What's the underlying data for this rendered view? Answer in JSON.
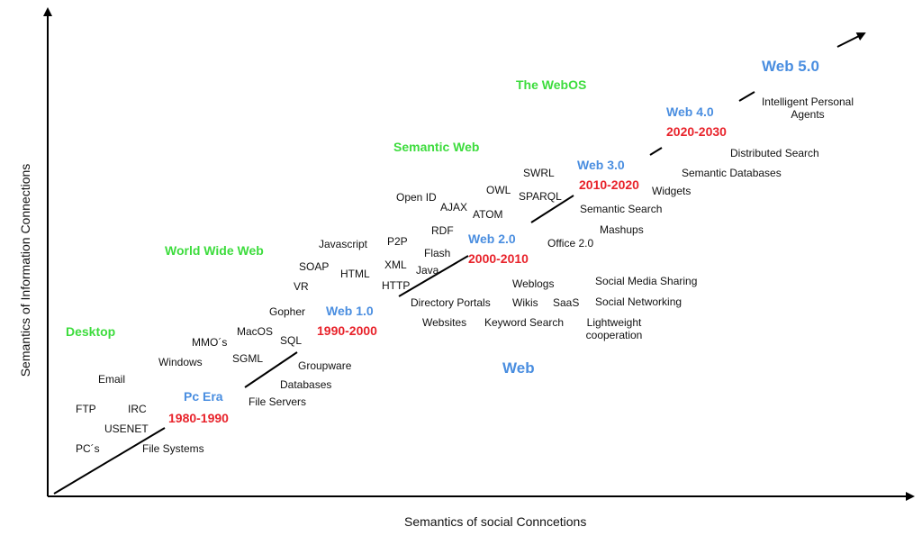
{
  "colors": {
    "era": "#4a8ee0",
    "period": "#e8232b",
    "theme": "#3ddc3d",
    "text": "#111111",
    "axis": "#000000"
  },
  "axes": {
    "x_label": "Semantics of social Conncetions",
    "y_label": "Semantics of Information Connections"
  },
  "themes": {
    "desktop": "Desktop",
    "world_wide_web": "World Wide Web",
    "semantic_web": "Semantic Web",
    "webos": "The WebOS",
    "web": "Web"
  },
  "eras": {
    "pc_era": "Pc Era",
    "web1": "Web 1.0",
    "web2": "Web 2.0",
    "web3": "Web 3.0",
    "web4": "Web 4.0",
    "web5": "Web 5.0"
  },
  "periods": {
    "pc_era": "1980-1990",
    "web1": "1990-2000",
    "web2": "2000-2010",
    "web3": "2010-2020",
    "web4": "2020-2030"
  },
  "terms": {
    "email": "Email",
    "ftp": "FTP",
    "irc": "IRC",
    "usenet": "USENET",
    "pcs": "PC´s",
    "file_systems": "File Systems",
    "windows": "Windows",
    "mmos": "MMO´s",
    "macos": "MacOS",
    "sql": "SQL",
    "sgml": "SGML",
    "gopher": "Gopher",
    "vr": "VR",
    "soap": "SOAP",
    "html": "HTML",
    "javascript": "Javascript",
    "p2p": "P2P",
    "xml": "XML",
    "http": "HTTP",
    "rdf": "RDF",
    "flash": "Flash",
    "java": "Java",
    "open_id": "Open ID",
    "ajax": "AJAX",
    "owl": "OWL",
    "atom": "ATOM",
    "swrl": "SWRL",
    "sparql": "SPARQL",
    "groupware": "Groupware",
    "databases": "Databases",
    "file_servers": "File Servers",
    "directory_portals": "Directory Portals",
    "websites": "Websites",
    "weblogs": "Weblogs",
    "wikis": "Wikis",
    "saas": "SaaS",
    "keyword_search": "Keyword Search",
    "office2": "Office 2.0",
    "mashups": "Mashups",
    "widgets": "Widgets",
    "semantic_search": "Semantic Search",
    "social_media_sharing": "Social Media Sharing",
    "social_networking": "Social Networking",
    "lightweight_cooperation": "Lightweight cooperation",
    "semantic_databases": "Semantic Databases",
    "distributed_search": "Distributed Search",
    "intelligent_personal_agents": "Intelligent Personal Agents"
  }
}
